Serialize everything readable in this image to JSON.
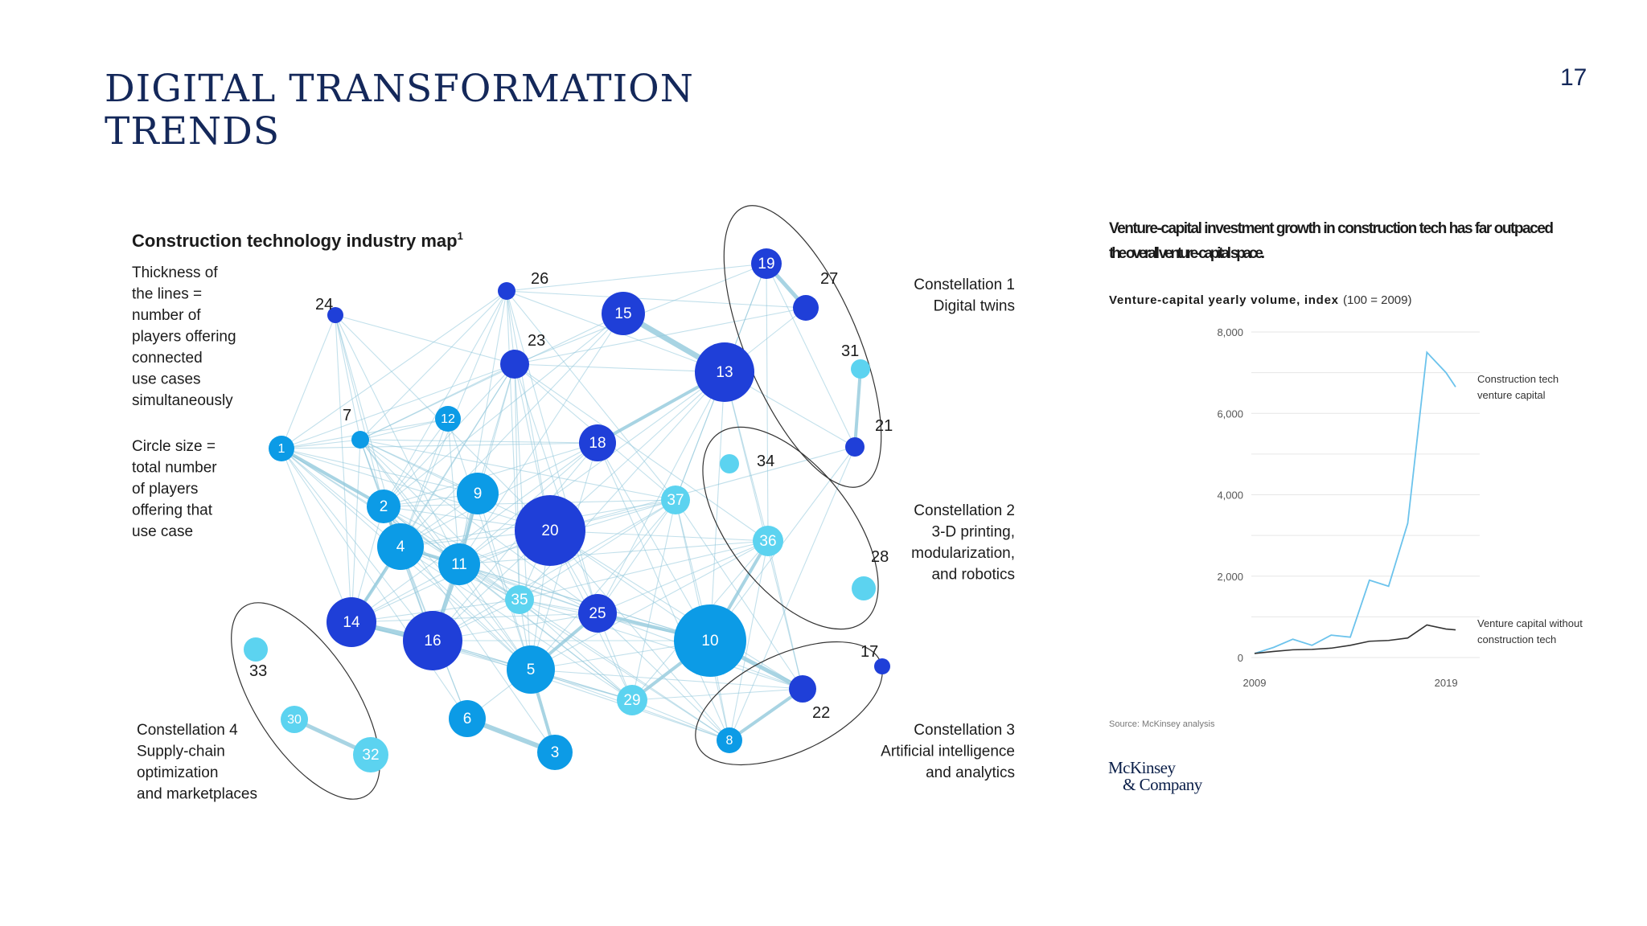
{
  "slide": {
    "title": "DIGITAL TRANSFORMATION\nTRENDS",
    "page_number": "17"
  },
  "network": {
    "title": "Construction technology industry map",
    "title_superscript": "1",
    "legend_lines": [
      "Thickness of",
      "the lines =",
      "number of",
      "players offering",
      "connected",
      "use cases",
      "simultaneously"
    ],
    "legend_circles": [
      "Circle size =",
      "total number",
      "of players",
      "offering that",
      "use case"
    ],
    "constellations": [
      {
        "id": "c1",
        "lines": [
          "Constellation 1",
          "Digital twins"
        ]
      },
      {
        "id": "c2",
        "lines": [
          "Constellation 2",
          "3-D printing,",
          "modularization,",
          "and robotics"
        ]
      },
      {
        "id": "c3",
        "lines": [
          "Constellation 3",
          "Artificial intelligence",
          "and analytics"
        ]
      },
      {
        "id": "c4",
        "lines": [
          "Constellation 4",
          "Supply-chain",
          "optimization",
          "and marketplaces"
        ]
      }
    ],
    "colors": {
      "dark": "#1f3fd8",
      "mid": "#0c9be6",
      "light": "#5cd3f0",
      "edge": "#8fc6da"
    }
  },
  "chart_data": {
    "type": "line",
    "title": "Venture-capital investment growth in construction tech has far outpaced the overall venture-capital space.",
    "subtitle": "Venture-capital yearly volume, index",
    "subtitle_suffix": "(100 = 2009)",
    "x_tick_labels": [
      "2009",
      "2019"
    ],
    "y_tick_labels": [
      "0",
      "2,000",
      "4,000",
      "6,000",
      "8,000"
    ],
    "ylim": [
      0,
      8000
    ],
    "x": [
      2009,
      2010,
      2011,
      2012,
      2013,
      2014,
      2015,
      2016,
      2017,
      2018,
      2019,
      2019.5
    ],
    "series": [
      {
        "name": "Construction tech venture capital",
        "color": "#6cc3ec",
        "values": [
          100,
          250,
          450,
          300,
          550,
          500,
          1900,
          1750,
          3300,
          7500,
          7000,
          6650
        ]
      },
      {
        "name": "Venture capital without construction tech",
        "color": "#333333",
        "values": [
          100,
          150,
          190,
          200,
          230,
          300,
          400,
          420,
          480,
          800,
          700,
          680
        ]
      }
    ],
    "series_labels": [
      [
        "Construction tech",
        "venture capital"
      ],
      [
        "Venture capital without",
        "construction tech"
      ]
    ],
    "source": "Source: McKinsey analysis",
    "logo": {
      "line1": "McKinsey",
      "line2": "& Company"
    }
  }
}
